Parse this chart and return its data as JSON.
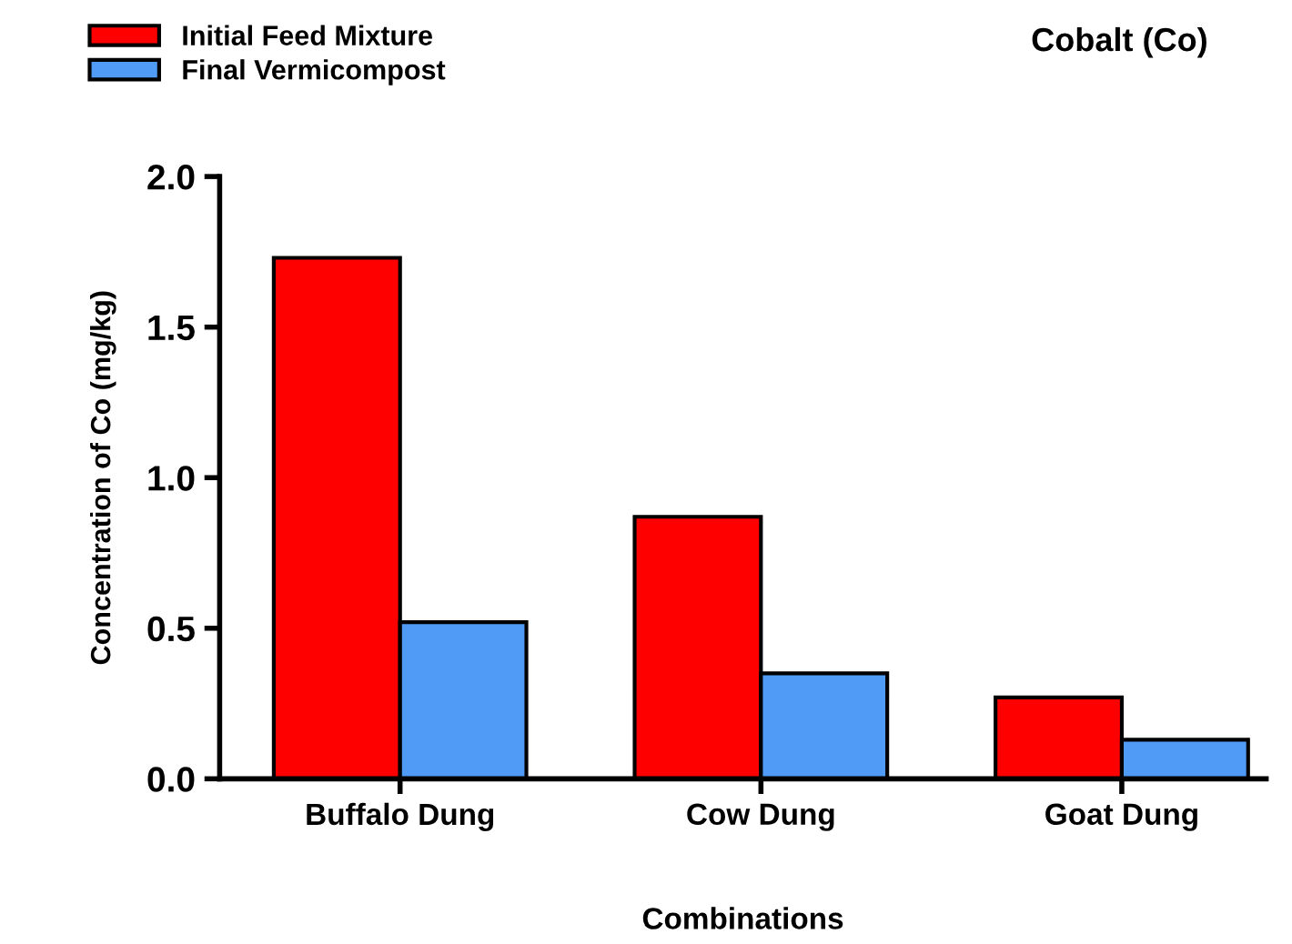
{
  "chart_data": {
    "type": "bar",
    "title": "Cobalt (Co)",
    "xlabel": "Combinations",
    "ylabel": "Concentration of Co (mg/kg)",
    "categories": [
      "Buffalo Dung",
      "Cow Dung",
      "Goat Dung"
    ],
    "series": [
      {
        "name": "Initial Feed Mixture",
        "color": "#ff0000",
        "values": [
          1.73,
          0.87,
          0.27
        ]
      },
      {
        "name": "Final Vermicompost",
        "color": "#4f9bf5",
        "values": [
          0.52,
          0.35,
          0.13
        ]
      }
    ],
    "ylim": [
      0,
      2.0
    ],
    "yticks": [
      {
        "value": 0,
        "label": "0.0"
      },
      {
        "value": 0.5,
        "label": "0.5"
      },
      {
        "value": 1.0,
        "label": "1.0"
      },
      {
        "value": 1.5,
        "label": "1.5"
      },
      {
        "value": 2.0,
        "label": "2.0"
      }
    ],
    "grid": false,
    "legend": "top left"
  }
}
